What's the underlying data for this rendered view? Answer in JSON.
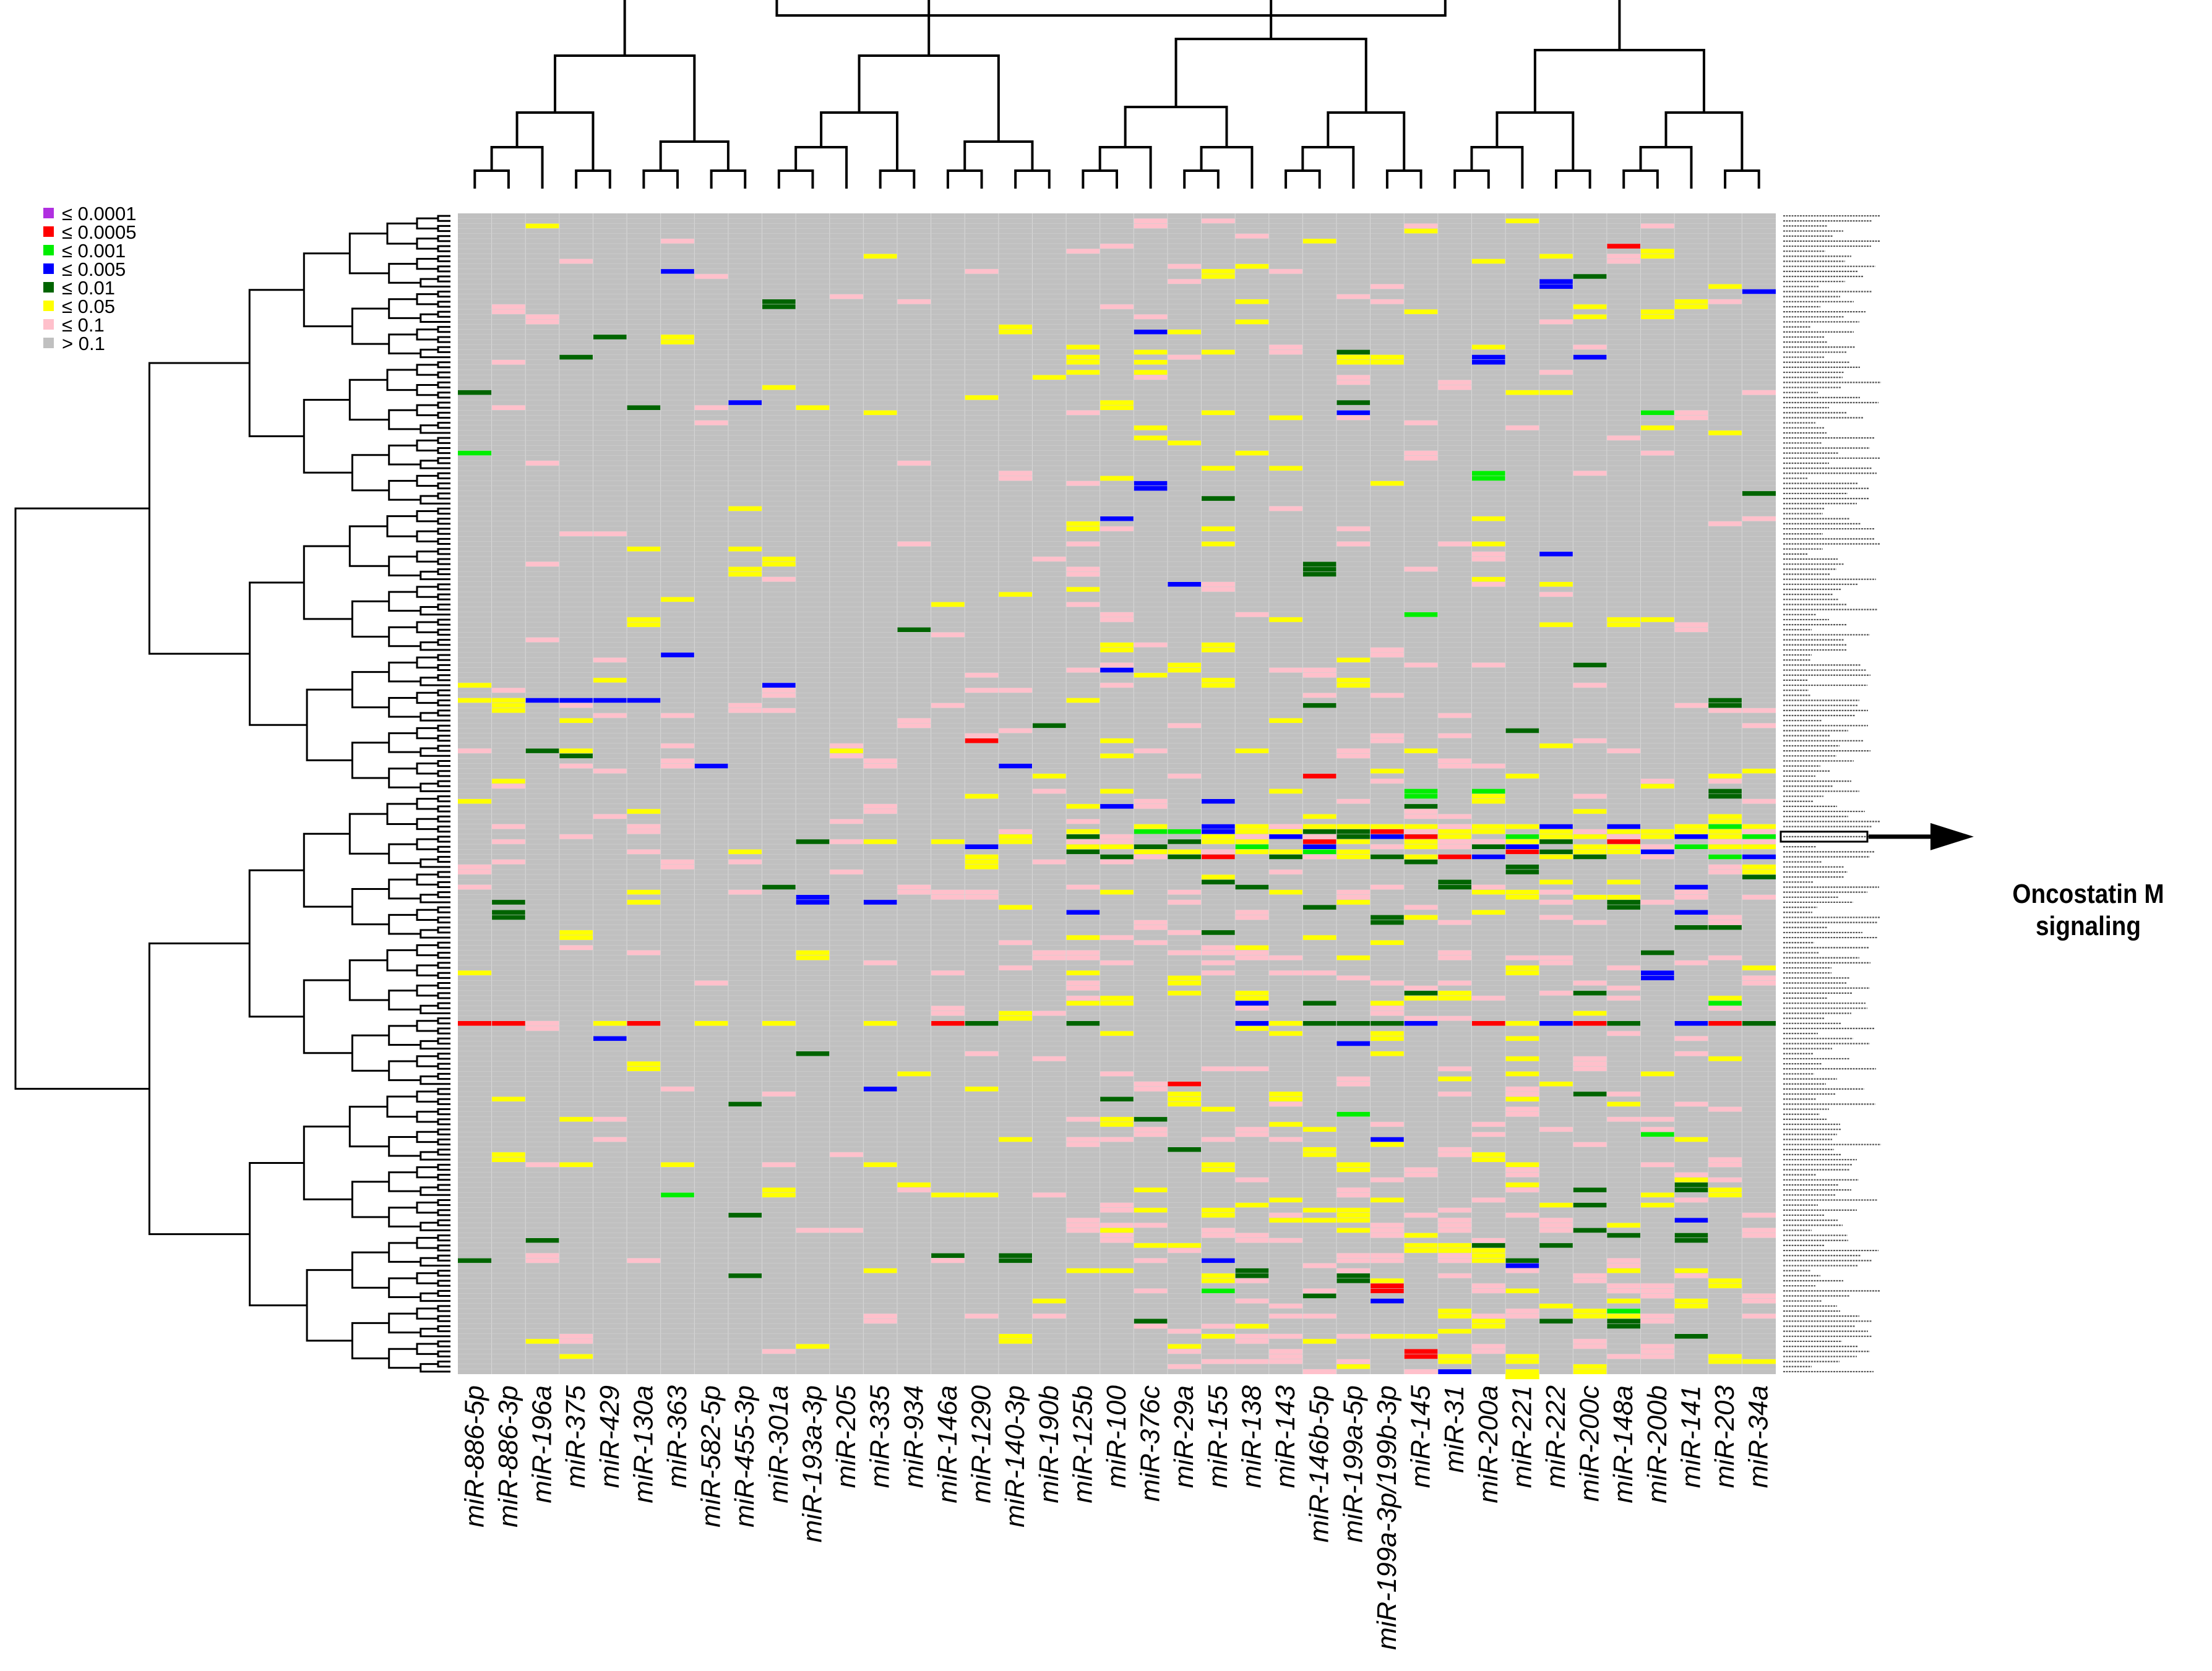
{
  "chart_data": {
    "type": "heatmap",
    "title": "",
    "description": "Clustered heatmap of canonical pathway enrichment p-values per microRNA",
    "columns": [
      "miR-886-5p",
      "miR-886-3p",
      "miR-196a",
      "miR-375",
      "miR-429",
      "miR-130a",
      "miR-363",
      "miR-582-5p",
      "miR-455-3p",
      "miR-301a",
      "miR-193a-3p",
      "miR-205",
      "miR-335",
      "miR-934",
      "miR-146a",
      "miR-1290",
      "miR-140-3p",
      "miR-190b",
      "miR-125b",
      "miR-100",
      "miR-376c",
      "miR-29a",
      "miR-155",
      "miR-138",
      "miR-143",
      "miR-146b-5p",
      "miR-199a-5p",
      "miR-199a-3p/199b-3p",
      "miR-145",
      "miR-31",
      "miR-200a",
      "miR-221",
      "miR-222",
      "miR-200c",
      "miR-148a",
      "miR-200b",
      "miR-141",
      "miR-203",
      "miR-34a"
    ],
    "row_count": 230,
    "legend": [
      {
        "label": "≤ 0.0001",
        "color": "#b030e0"
      },
      {
        "label": "≤ 0.0005",
        "color": "#ff0000"
      },
      {
        "label": "≤ 0.001",
        "color": "#00ee00"
      },
      {
        "label": "≤ 0.005",
        "color": "#0000ff"
      },
      {
        "label": "≤ 0.01",
        "color": "#006400"
      },
      {
        "label": "≤ 0.05",
        "color": "#ffff00"
      },
      {
        "label": "≤ 0.1",
        "color": "#ffc0cb"
      },
      {
        "label": "> 0.1",
        "color": "#c0c0c0"
      }
    ],
    "annotation": {
      "label_line1": "Oncostatin M",
      "label_line2": "signaling"
    },
    "notes": "Row labels on the right are illegible pathway names; cells colored by p-value bins."
  }
}
